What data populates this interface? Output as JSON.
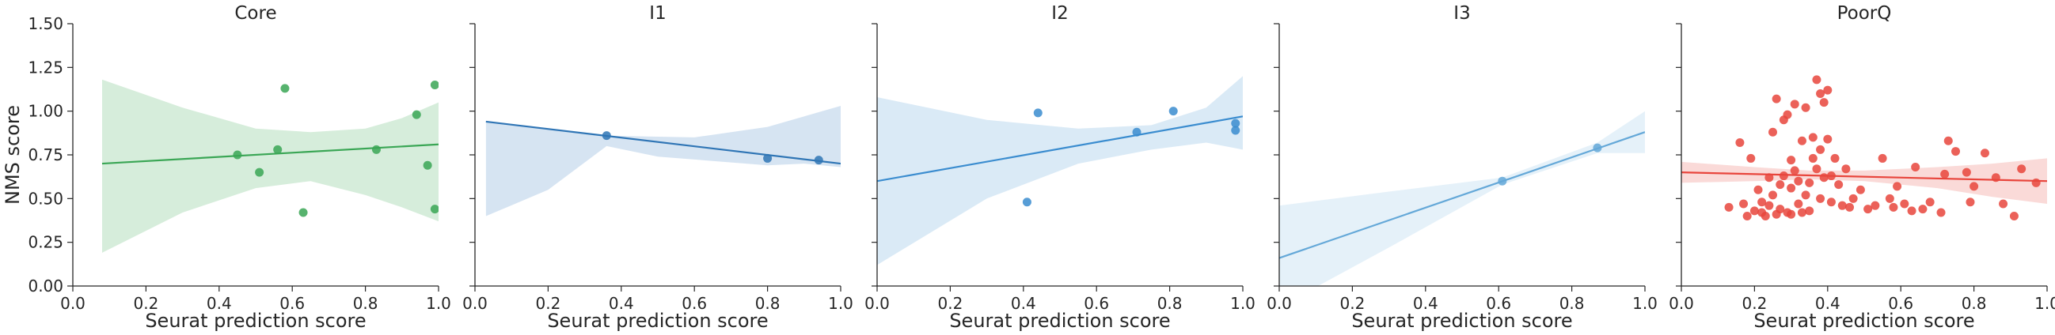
{
  "y_label": "NMS score",
  "x_label": "Seurat prediction score",
  "chart_data": [
    {
      "type": "scatter",
      "title": "Core",
      "color": "#3aa655",
      "band_color": "#cfead5",
      "xlim": [
        0.0,
        1.0
      ],
      "ylim": [
        0.0,
        1.5
      ],
      "xticks": [
        "0.0",
        "0.2",
        "0.4",
        "0.6",
        "0.8",
        "1.0"
      ],
      "yticks": [
        "0.00",
        "0.25",
        "0.50",
        "0.75",
        "1.00",
        "1.25",
        "1.50"
      ],
      "points": [
        [
          0.45,
          0.75
        ],
        [
          0.51,
          0.65
        ],
        [
          0.56,
          0.78
        ],
        [
          0.58,
          1.13
        ],
        [
          0.63,
          0.42
        ],
        [
          0.83,
          0.78
        ],
        [
          0.94,
          0.98
        ],
        [
          0.97,
          0.69
        ],
        [
          0.99,
          1.15
        ],
        [
          0.99,
          0.44
        ]
      ],
      "fit": [
        [
          0.08,
          0.7
        ],
        [
          1.0,
          0.81
        ]
      ],
      "band_upper": [
        [
          0.08,
          1.18
        ],
        [
          0.3,
          1.02
        ],
        [
          0.5,
          0.9
        ],
        [
          0.65,
          0.88
        ],
        [
          0.8,
          0.9
        ],
        [
          0.9,
          0.96
        ],
        [
          1.0,
          1.05
        ]
      ],
      "band_lower": [
        [
          0.08,
          0.19
        ],
        [
          0.3,
          0.42
        ],
        [
          0.5,
          0.56
        ],
        [
          0.65,
          0.6
        ],
        [
          0.8,
          0.52
        ],
        [
          0.9,
          0.45
        ],
        [
          1.0,
          0.37
        ]
      ]
    },
    {
      "type": "scatter",
      "title": "I1",
      "color": "#2f75b5",
      "band_color": "#cfdff0",
      "xlim": [
        0.0,
        1.0
      ],
      "ylim": [
        0.0,
        1.5
      ],
      "xticks": [
        "0.0",
        "0.2",
        "0.4",
        "0.6",
        "0.8",
        "1.0"
      ],
      "yticks": [],
      "points": [
        [
          0.36,
          0.86
        ],
        [
          0.8,
          0.73
        ],
        [
          0.94,
          0.72
        ]
      ],
      "fit": [
        [
          0.03,
          0.94
        ],
        [
          1.0,
          0.7
        ]
      ],
      "band_upper": [
        [
          0.03,
          0.94
        ],
        [
          0.36,
          0.86
        ],
        [
          0.6,
          0.85
        ],
        [
          0.8,
          0.91
        ],
        [
          1.0,
          1.03
        ]
      ],
      "band_lower": [
        [
          0.03,
          0.4
        ],
        [
          0.2,
          0.55
        ],
        [
          0.36,
          0.8
        ],
        [
          0.5,
          0.74
        ],
        [
          0.8,
          0.69
        ],
        [
          0.9,
          0.7
        ],
        [
          1.0,
          0.68
        ]
      ]
    },
    {
      "type": "scatter",
      "title": "I2",
      "color": "#3a8ccf",
      "band_color": "#d3e6f5",
      "xlim": [
        0.0,
        1.0
      ],
      "ylim": [
        0.0,
        1.5
      ],
      "xticks": [
        "0.0",
        "0.2",
        "0.4",
        "0.6",
        "0.8",
        "1.0"
      ],
      "yticks": [],
      "points": [
        [
          0.41,
          0.48
        ],
        [
          0.44,
          0.99
        ],
        [
          0.71,
          0.88
        ],
        [
          0.81,
          1.0
        ],
        [
          0.98,
          0.93
        ],
        [
          0.98,
          0.89
        ]
      ],
      "fit": [
        [
          0.0,
          0.6
        ],
        [
          1.0,
          0.97
        ]
      ],
      "band_upper": [
        [
          0.0,
          1.08
        ],
        [
          0.3,
          0.95
        ],
        [
          0.55,
          0.9
        ],
        [
          0.75,
          0.92
        ],
        [
          0.9,
          1.02
        ],
        [
          1.0,
          1.2
        ]
      ],
      "band_lower": [
        [
          0.0,
          0.12
        ],
        [
          0.3,
          0.5
        ],
        [
          0.55,
          0.7
        ],
        [
          0.75,
          0.78
        ],
        [
          0.9,
          0.82
        ],
        [
          1.0,
          0.78
        ]
      ]
    },
    {
      "type": "scatter",
      "title": "I3",
      "color": "#64a8d8",
      "band_color": "#e0eef8",
      "xlim": [
        0.0,
        1.0
      ],
      "ylim": [
        0.0,
        1.5
      ],
      "xticks": [
        "0.0",
        "0.2",
        "0.4",
        "0.6",
        "0.8",
        "1.0"
      ],
      "yticks": [],
      "points": [
        [
          0.61,
          0.6
        ],
        [
          0.87,
          0.79
        ]
      ],
      "fit": [
        [
          0.0,
          0.16
        ],
        [
          1.0,
          0.88
        ]
      ],
      "band_upper": [
        [
          0.0,
          0.46
        ],
        [
          0.3,
          0.54
        ],
        [
          0.61,
          0.62
        ],
        [
          0.87,
          0.82
        ],
        [
          1.0,
          1.0
        ]
      ],
      "band_lower": [
        [
          0.0,
          -0.12
        ],
        [
          0.3,
          0.22
        ],
        [
          0.61,
          0.58
        ],
        [
          0.87,
          0.76
        ],
        [
          1.0,
          0.76
        ]
      ]
    },
    {
      "type": "scatter",
      "title": "PoorQ",
      "color": "#e8453c",
      "band_color": "#f9d3d1",
      "xlim": [
        0.0,
        1.0
      ],
      "ylim": [
        0.0,
        1.5
      ],
      "xticks": [
        "0.0",
        "0.2",
        "0.4",
        "0.6",
        "0.8",
        "1.0"
      ],
      "yticks": [],
      "points": [
        [
          0.13,
          0.45
        ],
        [
          0.16,
          0.82
        ],
        [
          0.17,
          0.47
        ],
        [
          0.18,
          0.4
        ],
        [
          0.19,
          0.73
        ],
        [
          0.2,
          0.43
        ],
        [
          0.21,
          0.55
        ],
        [
          0.22,
          0.42
        ],
        [
          0.22,
          0.48
        ],
        [
          0.23,
          0.4
        ],
        [
          0.24,
          0.62
        ],
        [
          0.24,
          0.46
        ],
        [
          0.25,
          0.52
        ],
        [
          0.25,
          0.88
        ],
        [
          0.26,
          1.07
        ],
        [
          0.26,
          0.41
        ],
        [
          0.27,
          0.58
        ],
        [
          0.27,
          0.44
        ],
        [
          0.28,
          0.63
        ],
        [
          0.28,
          0.95
        ],
        [
          0.29,
          0.98
        ],
        [
          0.29,
          0.42
        ],
        [
          0.3,
          0.72
        ],
        [
          0.3,
          0.56
        ],
        [
          0.3,
          0.41
        ],
        [
          0.31,
          1.04
        ],
        [
          0.31,
          0.66
        ],
        [
          0.32,
          0.47
        ],
        [
          0.32,
          0.6
        ],
        [
          0.33,
          0.83
        ],
        [
          0.33,
          0.42
        ],
        [
          0.34,
          1.02
        ],
        [
          0.34,
          0.52
        ],
        [
          0.35,
          0.59
        ],
        [
          0.35,
          0.43
        ],
        [
          0.36,
          0.73
        ],
        [
          0.36,
          0.85
        ],
        [
          0.37,
          0.67
        ],
        [
          0.37,
          1.18
        ],
        [
          0.38,
          1.1
        ],
        [
          0.38,
          0.5
        ],
        [
          0.38,
          0.78
        ],
        [
          0.39,
          1.05
        ],
        [
          0.39,
          0.62
        ],
        [
          0.4,
          1.12
        ],
        [
          0.4,
          0.84
        ],
        [
          0.41,
          0.48
        ],
        [
          0.41,
          0.63
        ],
        [
          0.42,
          0.73
        ],
        [
          0.43,
          0.58
        ],
        [
          0.44,
          0.46
        ],
        [
          0.45,
          0.67
        ],
        [
          0.46,
          0.45
        ],
        [
          0.47,
          0.5
        ],
        [
          0.49,
          0.55
        ],
        [
          0.51,
          0.44
        ],
        [
          0.53,
          0.46
        ],
        [
          0.55,
          0.73
        ],
        [
          0.57,
          0.5
        ],
        [
          0.58,
          0.45
        ],
        [
          0.59,
          0.57
        ],
        [
          0.61,
          0.47
        ],
        [
          0.63,
          0.43
        ],
        [
          0.64,
          0.68
        ],
        [
          0.66,
          0.44
        ],
        [
          0.68,
          0.48
        ],
        [
          0.71,
          0.42
        ],
        [
          0.72,
          0.64
        ],
        [
          0.73,
          0.83
        ],
        [
          0.75,
          0.77
        ],
        [
          0.78,
          0.65
        ],
        [
          0.79,
          0.48
        ],
        [
          0.8,
          0.57
        ],
        [
          0.83,
          0.76
        ],
        [
          0.86,
          0.62
        ],
        [
          0.88,
          0.47
        ],
        [
          0.91,
          0.4
        ],
        [
          0.93,
          0.67
        ],
        [
          0.97,
          0.59
        ]
      ],
      "fit": [
        [
          0.0,
          0.65
        ],
        [
          1.0,
          0.6
        ]
      ],
      "band_upper": [
        [
          0.0,
          0.71
        ],
        [
          0.2,
          0.68
        ],
        [
          0.35,
          0.66
        ],
        [
          0.5,
          0.66
        ],
        [
          0.7,
          0.68
        ],
        [
          0.85,
          0.7
        ],
        [
          1.0,
          0.73
        ]
      ],
      "band_lower": [
        [
          0.0,
          0.59
        ],
        [
          0.2,
          0.6
        ],
        [
          0.35,
          0.61
        ],
        [
          0.5,
          0.6
        ],
        [
          0.7,
          0.56
        ],
        [
          0.85,
          0.51
        ],
        [
          1.0,
          0.47
        ]
      ]
    }
  ]
}
